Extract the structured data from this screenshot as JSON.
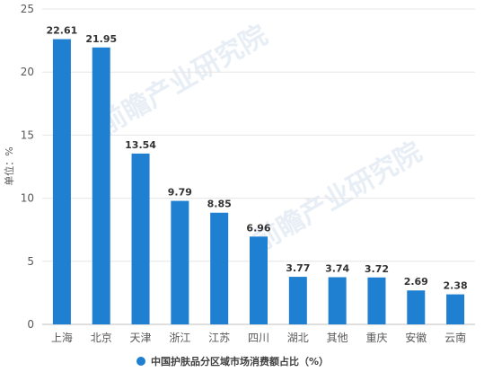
{
  "chart_data": {
    "type": "bar",
    "categories": [
      "上海",
      "北京",
      "天津",
      "浙江",
      "江苏",
      "四川",
      "湖北",
      "其他",
      "重庆",
      "安徽",
      "云南"
    ],
    "series": [
      {
        "name": "中国护肤品分区域市场消费额占比（%）",
        "values": [
          22.61,
          21.95,
          13.54,
          9.79,
          8.85,
          6.96,
          3.77,
          3.74,
          3.72,
          2.69,
          2.38
        ],
        "color": "#1f7fd0"
      }
    ],
    "data_labels": [
      "22.61",
      "21.95",
      "13.54",
      "9.79",
      "8.85",
      "6.96",
      "3.77",
      "3.74",
      "3.72",
      "2.69",
      "2.38"
    ],
    "ylabel": "单位：%",
    "xlabel": "",
    "ylim": [
      0,
      25
    ],
    "yticks": [
      0,
      5,
      10,
      15,
      20,
      25
    ],
    "grid": true,
    "legend_position": "bottom-center"
  },
  "watermark": "前瞻产业研究院"
}
